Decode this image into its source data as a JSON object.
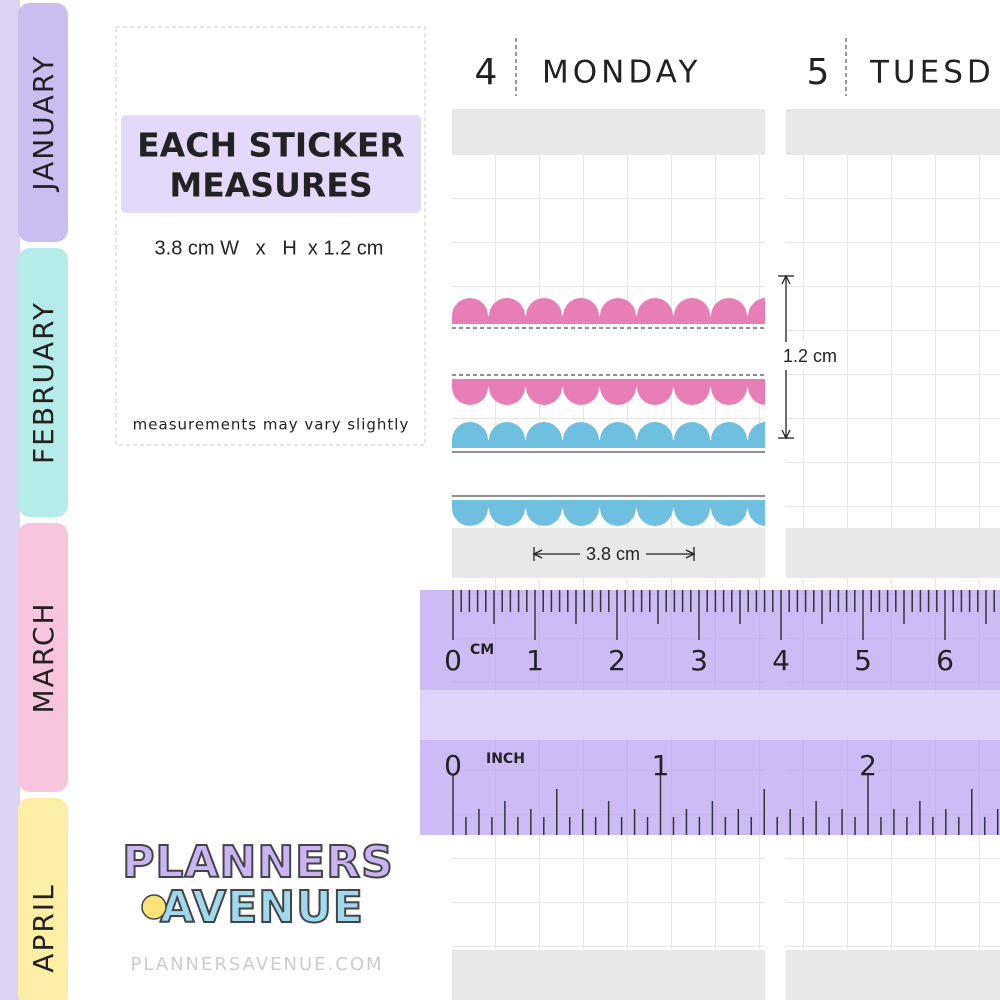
{
  "tabs": [
    "JANUARY",
    "FEBRUARY",
    "MARCH",
    "APRIL"
  ],
  "info": {
    "title_line1": "EACH STICKER",
    "title_line2": "MEASURES",
    "size": "3.8 cm W   x   H  x 1.2 cm",
    "note": "measurements may vary slightly"
  },
  "days": [
    {
      "number": "4",
      "name": "MONDAY"
    },
    {
      "number": "5",
      "name": "TUESD"
    }
  ],
  "dimensions": {
    "height": "1.2 cm",
    "width": "3.8 cm"
  },
  "ruler": {
    "cm_unit": "CM",
    "cm_labels": [
      0,
      1,
      2,
      3,
      4,
      5,
      6
    ],
    "inch_unit": "INCH",
    "inch_labels": [
      0,
      1,
      2
    ]
  },
  "logo": {
    "line1": "PLANNERS",
    "line2": "AVENUE"
  },
  "footer": "PLANNERSAVENUE.COM"
}
